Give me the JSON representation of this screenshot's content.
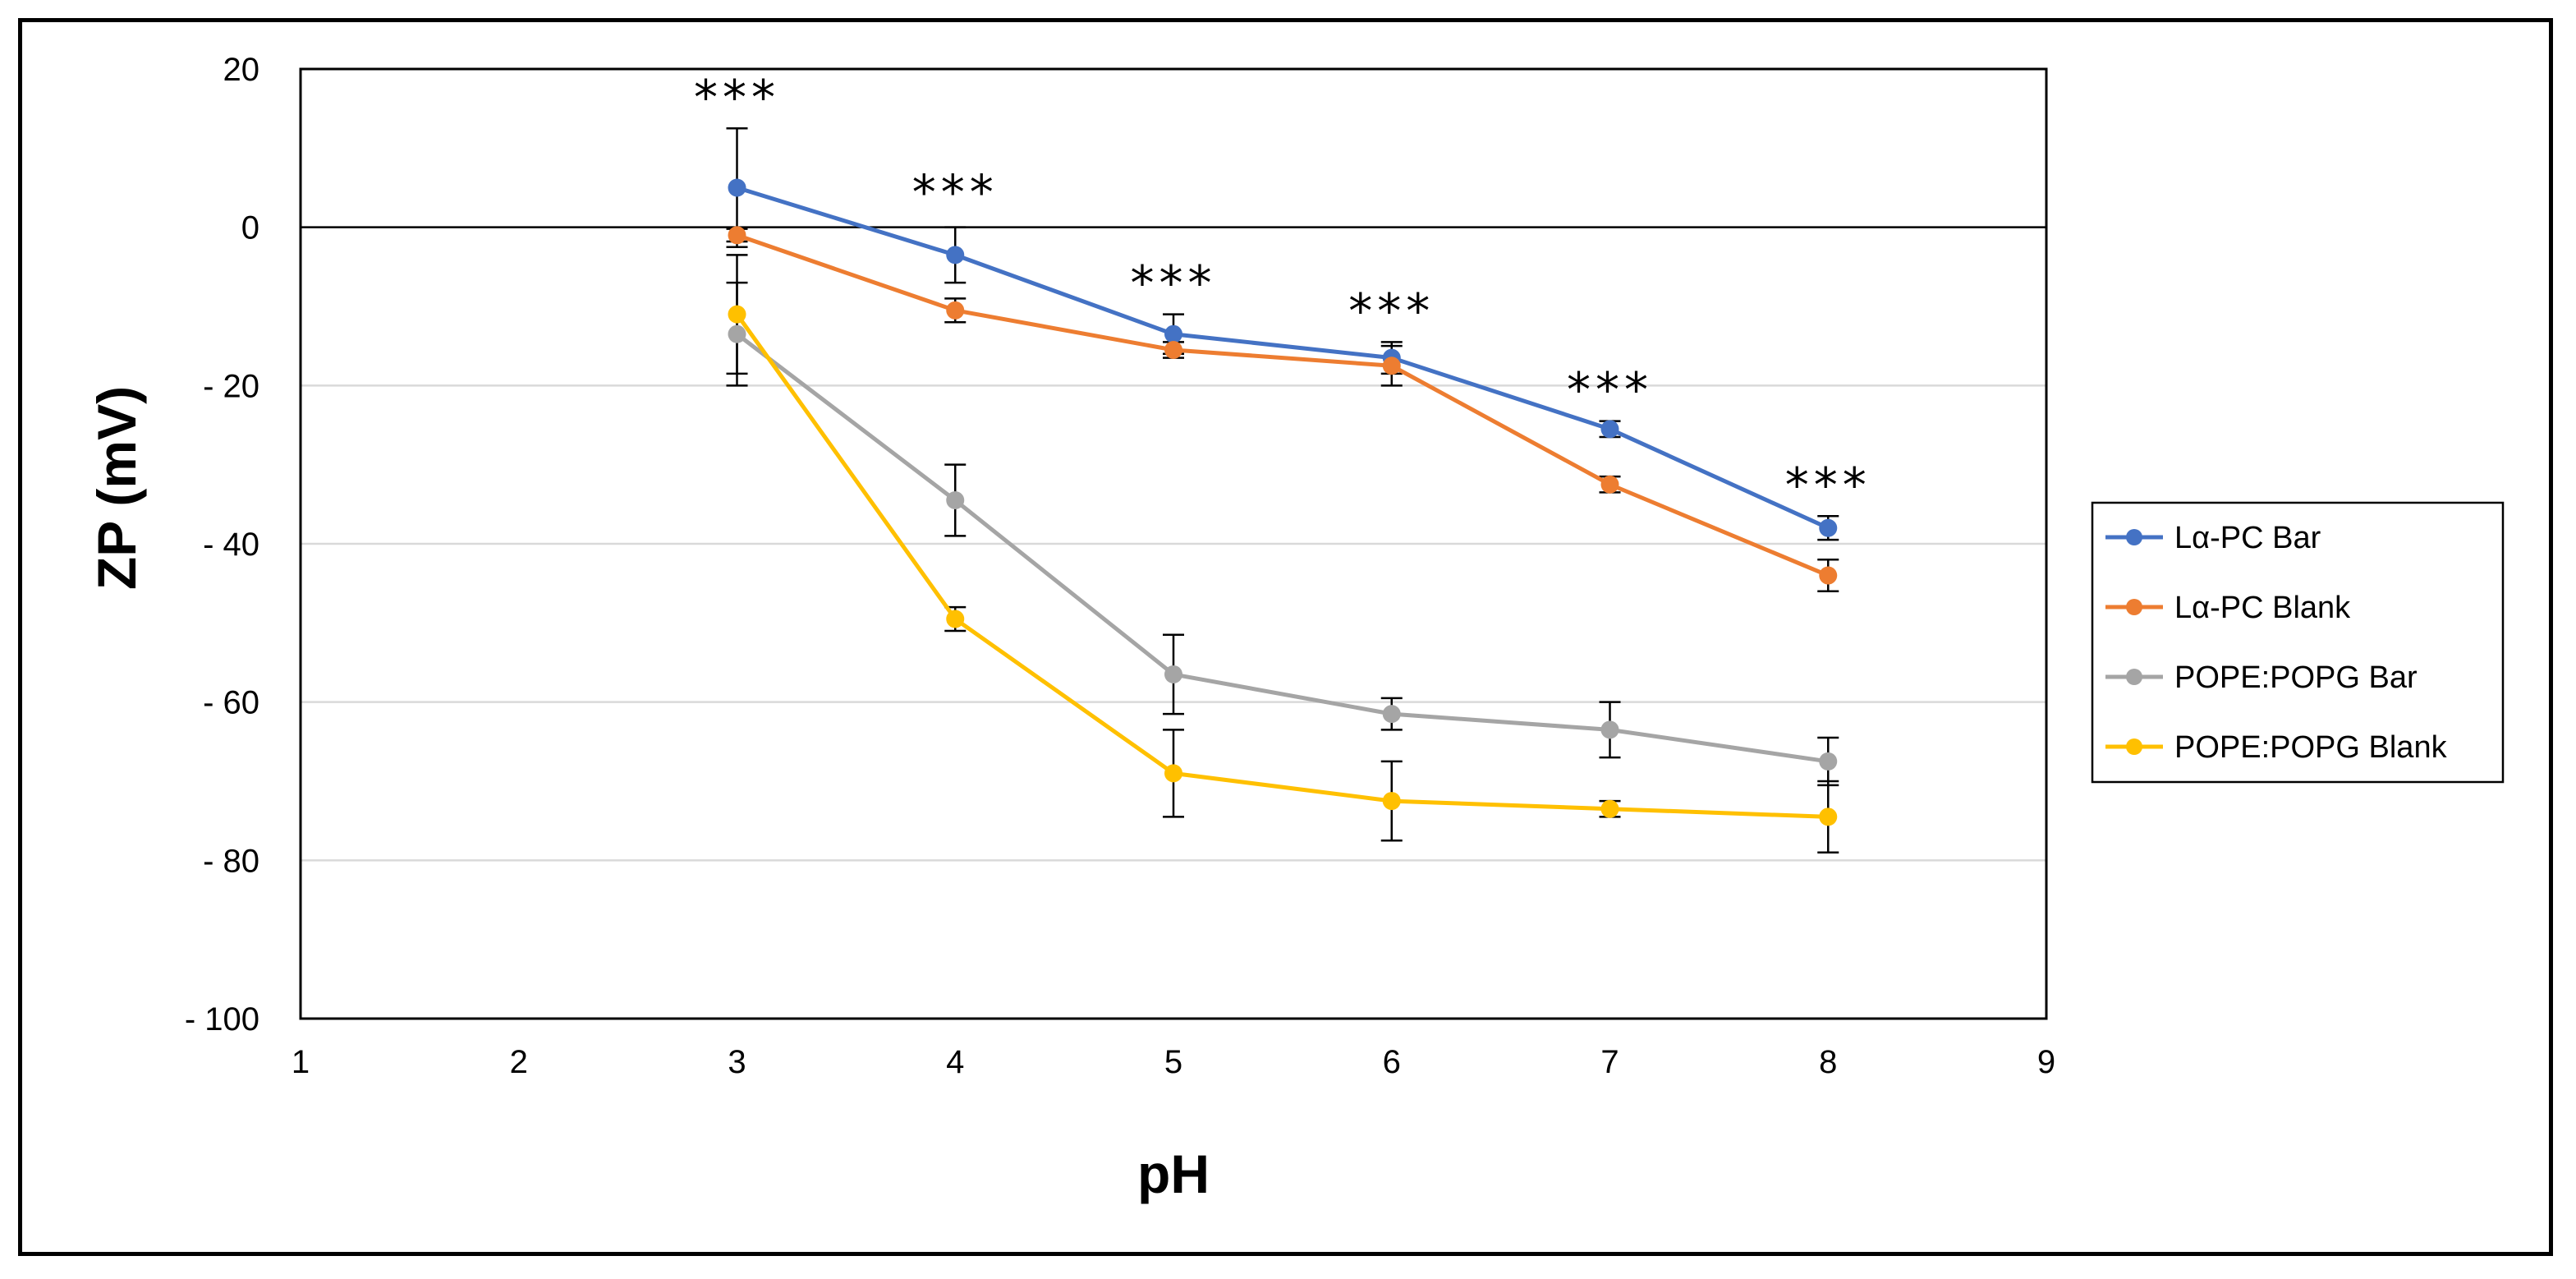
{
  "chart_data": {
    "type": "line",
    "title": "",
    "xlabel": "pH",
    "ylabel": "ZP (mV)",
    "xlim": [
      1,
      9
    ],
    "ylim": [
      -100,
      20
    ],
    "x_ticks": [
      "1",
      "2",
      "3",
      "4",
      "5",
      "6",
      "7",
      "8",
      "9"
    ],
    "y_ticks": [
      {
        "value": 20,
        "label": "20"
      },
      {
        "value": 0,
        "label": "0"
      },
      {
        "value": -20,
        "label": "- 20"
      },
      {
        "value": -40,
        "label": "- 40"
      },
      {
        "value": -60,
        "label": "- 60"
      },
      {
        "value": -80,
        "label": "- 80"
      },
      {
        "value": -100,
        "label": "- 100"
      }
    ],
    "gridlines": [
      -20,
      -40,
      -60,
      -80
    ],
    "zero_line": 0,
    "legend_position": "right",
    "x": [
      3,
      4,
      5,
      6,
      7,
      8
    ],
    "series": [
      {
        "name": "Lα-PC Bar",
        "color": "#4472C4",
        "values": [
          5,
          -3.5,
          -13.5,
          -16.5,
          -25.5,
          -38
        ],
        "errors": [
          7.5,
          3.5,
          2.5,
          2,
          1,
          1.5
        ]
      },
      {
        "name": "Lα-PC Blank",
        "color": "#ED7D31",
        "values": [
          -1,
          -10.5,
          -15.5,
          -17.5,
          -32.5,
          -44
        ],
        "errors": [
          0.8,
          1.5,
          1,
          2.5,
          1,
          2
        ]
      },
      {
        "name": "POPE:POPG Bar",
        "color": "#A5A5A5",
        "values": [
          -13.5,
          -34.5,
          -56.5,
          -61.5,
          -63.5,
          -67.5
        ],
        "errors": [
          6.5,
          4.5,
          5,
          2,
          3.5,
          3
        ]
      },
      {
        "name": "POPE:POPG Blank",
        "color": "#FFC000",
        "values": [
          -11,
          -49.5,
          -69,
          -72.5,
          -73.5,
          -74.5
        ],
        "errors": [
          7.5,
          1.5,
          5.5,
          5,
          1,
          4.5
        ]
      }
    ],
    "annotations": [
      {
        "x": 3,
        "value": 12.5,
        "text": "***"
      },
      {
        "x": 4,
        "value": 0.5,
        "text": "***"
      },
      {
        "x": 5,
        "value": -11,
        "text": "***"
      },
      {
        "x": 6,
        "value": -14.5,
        "text": "***"
      },
      {
        "x": 7,
        "value": -24.5,
        "text": "***"
      },
      {
        "x": 8,
        "value": -36.5,
        "text": "***"
      }
    ]
  }
}
